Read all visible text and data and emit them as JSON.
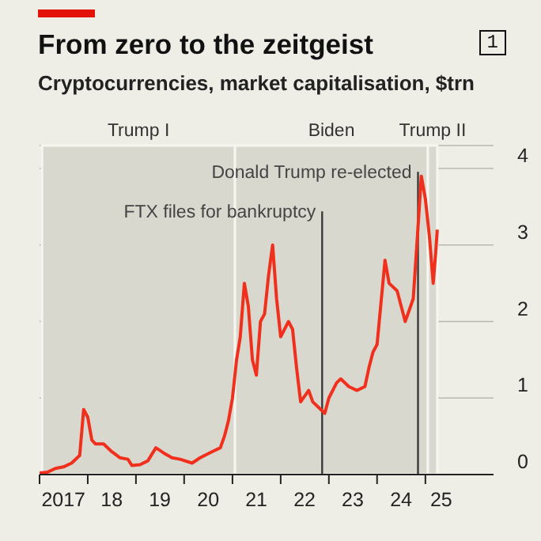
{
  "chart_data": {
    "type": "line",
    "title": "From zero to the zeitgeist",
    "subtitle": "Cryptocurrencies, market capitalisation, $trn",
    "annotations": [
      "1"
    ],
    "x": [
      "2017-01",
      "2017-03",
      "2017-05",
      "2017-07",
      "2017-09",
      "2017-11",
      "2017-12",
      "2018-01",
      "2018-02",
      "2018-03",
      "2018-05",
      "2018-07",
      "2018-09",
      "2018-11",
      "2018-12",
      "2019-02",
      "2019-04",
      "2019-06",
      "2019-08",
      "2019-10",
      "2019-12",
      "2020-03",
      "2020-05",
      "2020-08",
      "2020-10",
      "2020-11",
      "2020-12",
      "2021-01",
      "2021-02",
      "2021-03",
      "2021-04",
      "2021-05",
      "2021-06",
      "2021-07",
      "2021-08",
      "2021-09",
      "2021-10",
      "2021-11",
      "2021-12",
      "2022-01",
      "2022-03",
      "2022-04",
      "2022-05",
      "2022-06",
      "2022-08",
      "2022-09",
      "2022-11",
      "2022-12",
      "2023-01",
      "2023-03",
      "2023-04",
      "2023-06",
      "2023-08",
      "2023-10",
      "2023-11",
      "2023-12",
      "2024-01",
      "2024-03",
      "2024-04",
      "2024-06",
      "2024-08",
      "2024-09",
      "2024-10",
      "2024-11",
      "2024-12",
      "2025-01",
      "2025-02",
      "2025-03",
      "2025-03-20",
      "2025-04"
    ],
    "values": [
      0.02,
      0.03,
      0.08,
      0.1,
      0.15,
      0.25,
      0.85,
      0.75,
      0.45,
      0.4,
      0.4,
      0.3,
      0.22,
      0.2,
      0.12,
      0.13,
      0.18,
      0.35,
      0.28,
      0.22,
      0.2,
      0.15,
      0.22,
      0.3,
      0.35,
      0.5,
      0.7,
      1.0,
      1.5,
      1.8,
      2.5,
      2.2,
      1.5,
      1.3,
      2.0,
      2.1,
      2.6,
      3.0,
      2.3,
      1.8,
      2.0,
      1.9,
      1.4,
      0.95,
      1.1,
      0.95,
      0.85,
      0.8,
      1.0,
      1.2,
      1.25,
      1.15,
      1.1,
      1.15,
      1.4,
      1.6,
      1.7,
      2.8,
      2.5,
      2.4,
      2.0,
      2.15,
      2.3,
      3.1,
      3.9,
      3.6,
      3.1,
      2.5,
      2.9,
      3.2
    ],
    "color": "#f0301c",
    "xlim": [
      "2017-01-01",
      "2026-06-01"
    ],
    "xticks": [
      {
        "value": "2017-01-01",
        "label": null
      },
      {
        "value": "2017-07-01",
        "label": "2017"
      },
      {
        "value": "2018-01-01",
        "label": null
      },
      {
        "value": "2018-07-01",
        "label": "18"
      },
      {
        "value": "2019-01-01",
        "label": null
      },
      {
        "value": "2019-07-01",
        "label": "19"
      },
      {
        "value": "2020-01-01",
        "label": null
      },
      {
        "value": "2020-07-01",
        "label": "20"
      },
      {
        "value": "2021-01-01",
        "label": null
      },
      {
        "value": "2021-07-01",
        "label": "21"
      },
      {
        "value": "2022-01-01",
        "label": null
      },
      {
        "value": "2022-07-01",
        "label": "22"
      },
      {
        "value": "2023-01-01",
        "label": null
      },
      {
        "value": "2023-07-01",
        "label": "23"
      },
      {
        "value": "2024-01-01",
        "label": null
      },
      {
        "value": "2024-07-01",
        "label": "24"
      },
      {
        "value": "2025-01-01",
        "label": null
      },
      {
        "value": "2025-05-01",
        "label": "25"
      }
    ],
    "ylim": [
      0,
      4.3
    ],
    "yticks": [
      0,
      1,
      2,
      3,
      4
    ],
    "grid": "y",
    "bands": [
      {
        "axis": "x",
        "from": "2017-01-20",
        "to": "2021-01-20",
        "label": "Trump I",
        "color": "#d9d8cf"
      },
      {
        "axis": "x",
        "from": "2021-01-20",
        "to": "2025-01-20",
        "label": "Biden",
        "color": "#d9d8cf"
      },
      {
        "axis": "x",
        "from": "2025-01-20",
        "to": "2025-04-01",
        "label": "Trump II",
        "color": "#d9d8cf"
      }
    ],
    "ref_lines": [
      {
        "axis": "x",
        "value": "2022-11-11",
        "label": "FTX files for bankruptcy",
        "color": "#3a3a3a"
      },
      {
        "axis": "x",
        "value": "2024-11-06",
        "label": "Donald Trump re-elected",
        "color": "#3a3a3a"
      }
    ]
  }
}
